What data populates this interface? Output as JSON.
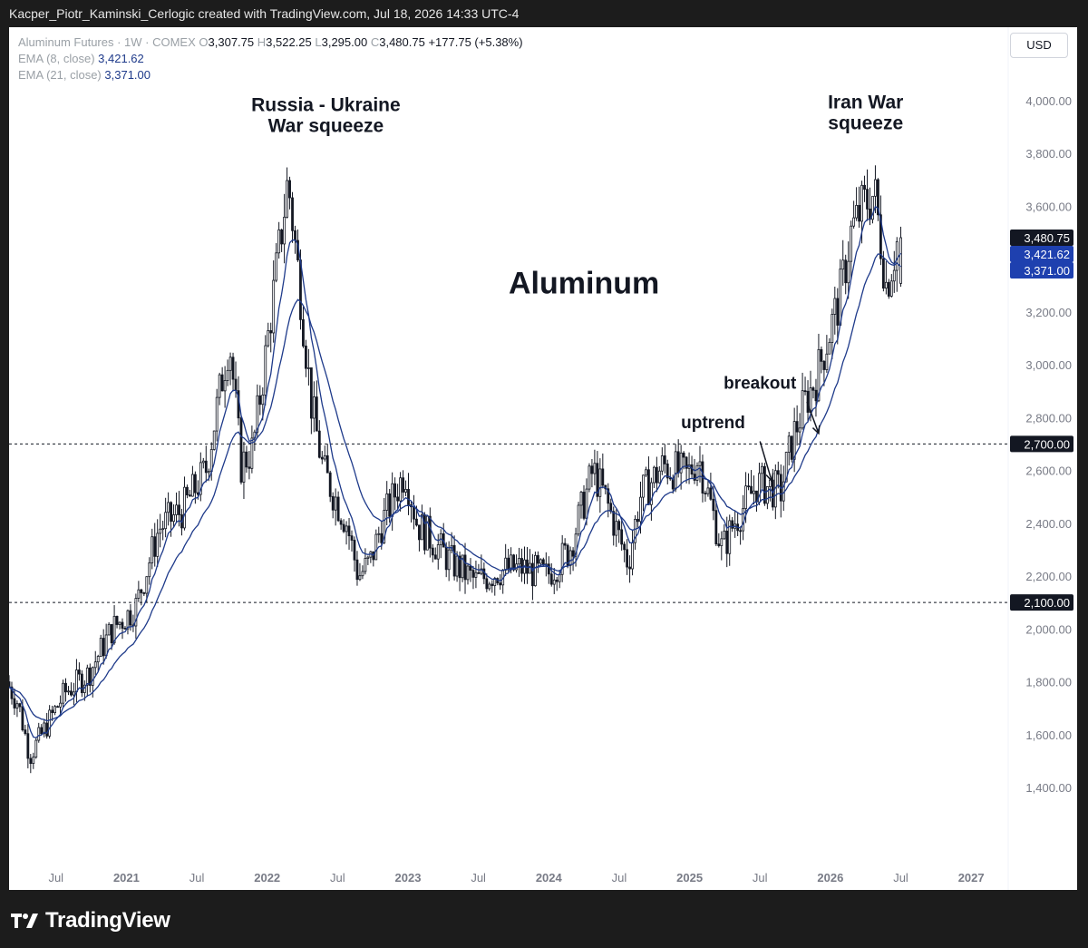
{
  "header": {
    "attribution": "Kacper_Piotr_Kaminski_Cerlogic created with TradingView.com, Jul 18, 2026 14:33 UTC-4"
  },
  "legend": {
    "symbol": "Aluminum Futures · 1W · COMEX",
    "o_label": "O",
    "o_value": "3,307.75",
    "h_label": "H",
    "h_value": "3,522.25",
    "l_label": "L",
    "l_value": "3,295.00",
    "c_label": "C",
    "c_value": "3,480.75",
    "change": "+177.75 (+5.38%)",
    "ema8_label": "EMA (8, close)",
    "ema8_value": "3,421.62",
    "ema21_label": "EMA (21, close)",
    "ema21_value": "3,371.00"
  },
  "currency_button": "USD",
  "footer": {
    "brand": "TradingView",
    "logo_icon": "tradingview-logo-icon"
  },
  "colors": {
    "up": "#ffffff",
    "down": "#131722",
    "wick": "#131722",
    "ema8": "#1e3a8a",
    "ema21": "#1e3a8a",
    "last_price_bg": "#131722",
    "ema_label_bg": "#1e40af",
    "level_bg": "#131722"
  },
  "chart_data": {
    "type": "candlestick",
    "title": "Aluminum",
    "interval": "1W",
    "y_ticks": [
      "1,400.00",
      "1,600.00",
      "1,800.00",
      "2,000.00",
      "2,200.00",
      "2,400.00",
      "2,600.00",
      "2,800.00",
      "3,000.00",
      "3,200.00",
      "3,400.00",
      "3,600.00",
      "3,800.00",
      "4,000.00"
    ],
    "ylim": [
      1050,
      4140
    ],
    "x_ticks": [
      {
        "label": "Jul",
        "date": "2020-07"
      },
      {
        "label": "2021",
        "date": "2021-01"
      },
      {
        "label": "Jul",
        "date": "2021-07"
      },
      {
        "label": "2022",
        "date": "2022-01"
      },
      {
        "label": "Jul",
        "date": "2022-07"
      },
      {
        "label": "2023",
        "date": "2023-01"
      },
      {
        "label": "Jul",
        "date": "2023-07"
      },
      {
        "label": "2024",
        "date": "2024-01"
      },
      {
        "label": "Jul",
        "date": "2024-07"
      },
      {
        "label": "2025",
        "date": "2025-01"
      },
      {
        "label": "Jul",
        "date": "2025-07"
      },
      {
        "label": "2026",
        "date": "2026-01"
      },
      {
        "label": "Jul",
        "date": "2026-07"
      },
      {
        "label": "2027",
        "date": "2027-01"
      }
    ],
    "xlim": [
      "2020-03",
      "2027-04"
    ],
    "price_path": [
      [
        "2020-03",
        1800
      ],
      [
        "2020-04",
        1720
      ],
      [
        "2020-05",
        1520
      ],
      [
        "2020-06",
        1600
      ],
      [
        "2020-08",
        1760
      ],
      [
        "2020-10",
        1830
      ],
      [
        "2020-12",
        2000
      ],
      [
        "2021-02",
        2080
      ],
      [
        "2021-04",
        2380
      ],
      [
        "2021-06",
        2450
      ],
      [
        "2021-08",
        2600
      ],
      [
        "2021-10",
        3100
      ],
      [
        "2021-11",
        2620
      ],
      [
        "2021-12",
        2680
      ],
      [
        "2022-01",
        3000
      ],
      [
        "2022-02",
        3350
      ],
      [
        "2022-03",
        3700
      ],
      [
        "2022-04",
        3300
      ],
      [
        "2022-05",
        2850
      ],
      [
        "2022-06",
        2600
      ],
      [
        "2022-08",
        2400
      ],
      [
        "2022-09",
        2200
      ],
      [
        "2022-10",
        2250
      ],
      [
        "2022-11",
        2400
      ],
      [
        "2023-01",
        2600
      ],
      [
        "2023-02",
        2400
      ],
      [
        "2023-03",
        2350
      ],
      [
        "2023-05",
        2250
      ],
      [
        "2023-07",
        2180
      ],
      [
        "2023-09",
        2220
      ],
      [
        "2023-11",
        2230
      ],
      [
        "2024-01",
        2200
      ],
      [
        "2024-03",
        2300
      ],
      [
        "2024-05",
        2600
      ],
      [
        "2024-06",
        2500
      ],
      [
        "2024-08",
        2250
      ],
      [
        "2024-09",
        2500
      ],
      [
        "2024-11",
        2620
      ],
      [
        "2025-01",
        2580
      ],
      [
        "2025-02",
        2650
      ],
      [
        "2025-04",
        2300
      ],
      [
        "2025-05",
        2400
      ],
      [
        "2025-07",
        2550
      ],
      [
        "2025-09",
        2520
      ],
      [
        "2025-10",
        2720
      ],
      [
        "2025-11",
        2850
      ],
      [
        "2025-12",
        2950
      ],
      [
        "2026-01",
        3100
      ],
      [
        "2026-02",
        3250
      ],
      [
        "2026-03",
        3500
      ],
      [
        "2026-04",
        3600
      ],
      [
        "2026-05",
        3650
      ],
      [
        "2026-06",
        3300
      ],
      [
        "2026-07",
        3481
      ]
    ],
    "last_candle": {
      "date": "2026-07",
      "open": 3307.75,
      "high": 3522.25,
      "low": 3295.0,
      "close": 3480.75
    },
    "ema8_last": 3421.62,
    "ema21_last": 3371.0,
    "horizontal_levels": [
      {
        "value": 2700,
        "label": "2,700.00"
      },
      {
        "value": 2100,
        "label": "2,100.00"
      }
    ],
    "price_labels": {
      "last": "3,480.75",
      "ema8": "3,421.62",
      "ema21": "3,371.00"
    },
    "annotations": [
      {
        "text": [
          "Russia - Ukraine",
          "War squeeze"
        ],
        "date": "2022-06",
        "value": 3960
      },
      {
        "text": [
          "Iran War",
          "squeeze"
        ],
        "date": "2026-04",
        "value": 3970
      },
      {
        "text": [
          "Aluminum"
        ],
        "date": "2024-04",
        "value": 3270
      },
      {
        "text": [
          "breakout"
        ],
        "date": "2025-07",
        "value": 2910
      },
      {
        "text": [
          "uptrend"
        ],
        "date": "2025-03",
        "value": 2760
      }
    ],
    "arrows": [
      {
        "from": [
          "2025-11",
          2860
        ],
        "to": [
          "2025-12",
          2740
        ]
      },
      {
        "from": [
          "2025-07",
          2710
        ],
        "to": [
          "2025-08",
          2560
        ]
      }
    ]
  }
}
